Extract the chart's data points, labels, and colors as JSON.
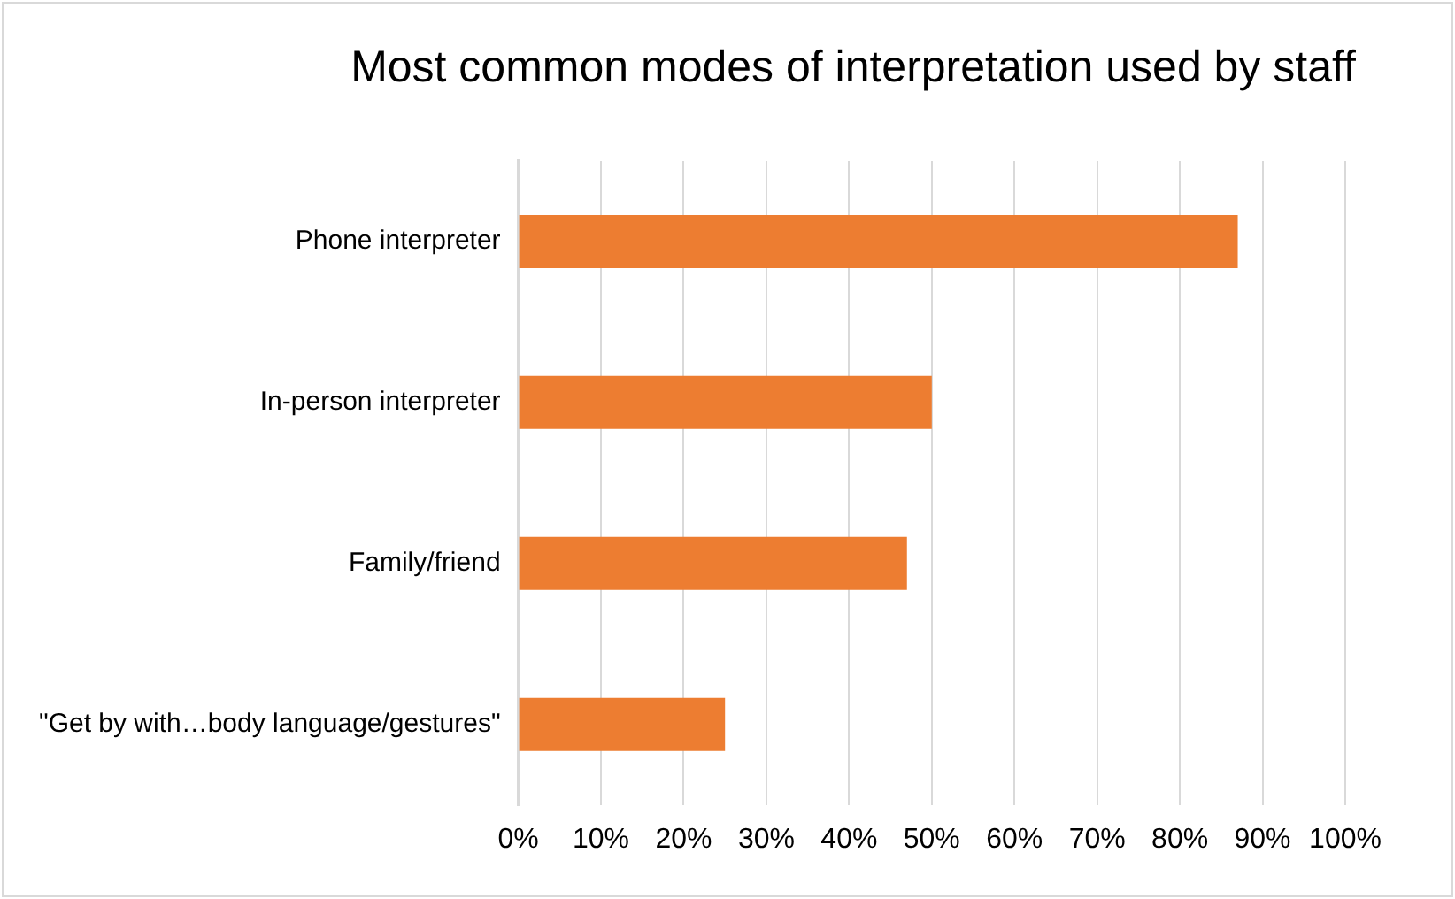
{
  "chart_data": {
    "type": "bar",
    "orientation": "horizontal",
    "title": "Most common modes of interpretation used by staff",
    "categories": [
      "Phone interpreter",
      "In-person interpreter",
      "Family/friend",
      "\"Get by with…body language/gestures\""
    ],
    "values": [
      87,
      50,
      47,
      25
    ],
    "color": "#ed7d31",
    "xlim": [
      0,
      100
    ],
    "xticks": [
      {
        "value": 0,
        "label": "0%"
      },
      {
        "value": 10,
        "label": "10%"
      },
      {
        "value": 20,
        "label": "20%"
      },
      {
        "value": 30,
        "label": "30%"
      },
      {
        "value": 40,
        "label": "40%"
      },
      {
        "value": 50,
        "label": "50%"
      },
      {
        "value": 60,
        "label": "60%"
      },
      {
        "value": 70,
        "label": "70%"
      },
      {
        "value": 80,
        "label": "80%"
      },
      {
        "value": 90,
        "label": "90%"
      },
      {
        "value": 100,
        "label": "100%"
      }
    ],
    "grid": "x",
    "legend": false
  }
}
